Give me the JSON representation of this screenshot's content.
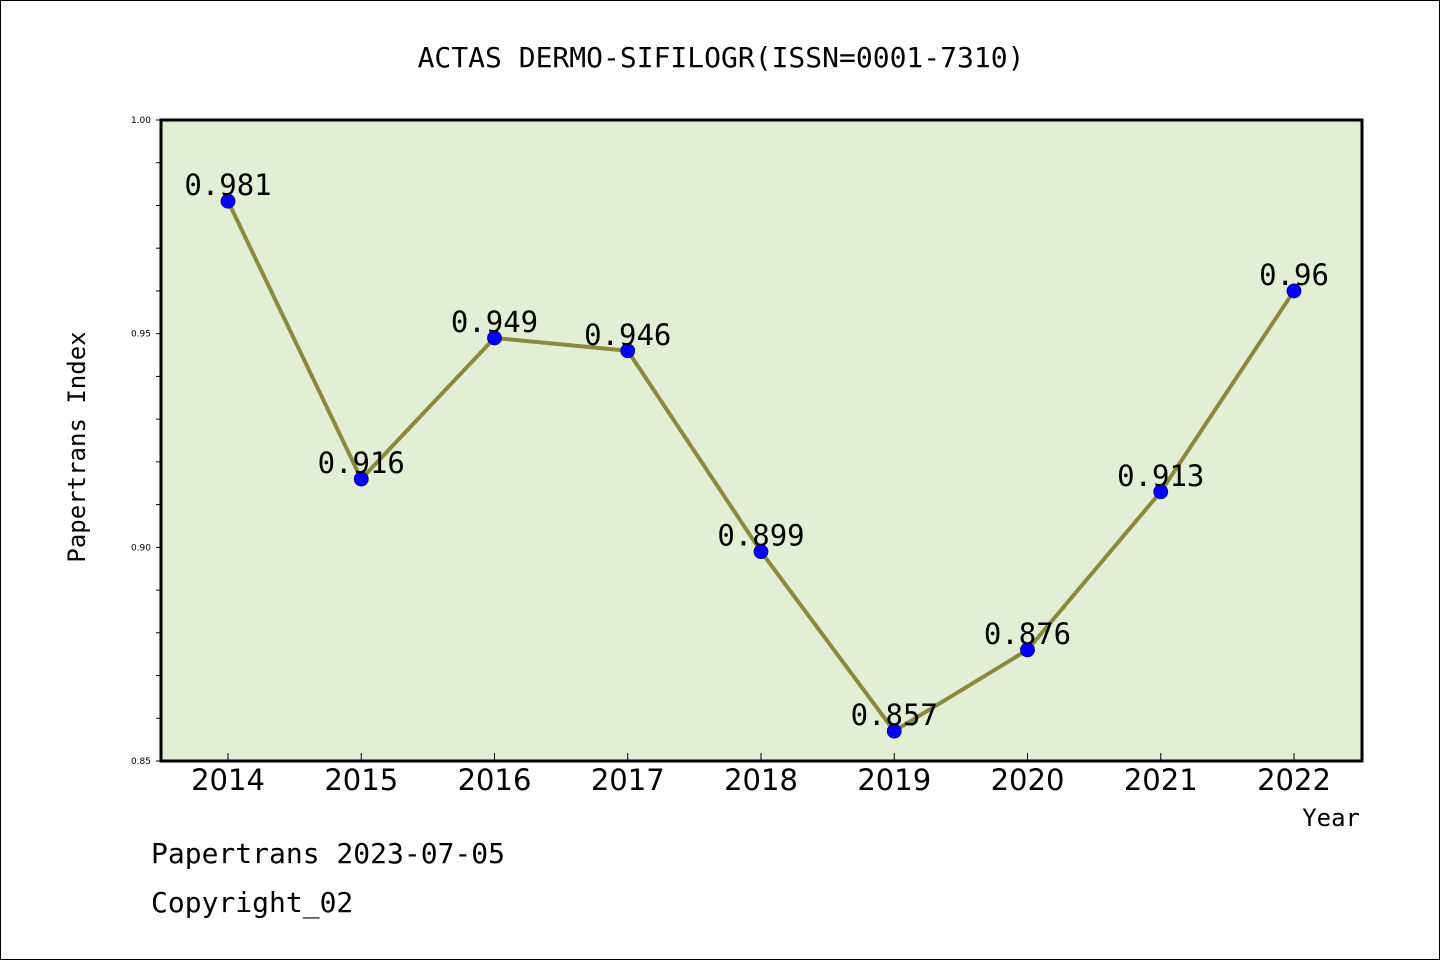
{
  "chart_data": {
    "type": "line",
    "title": "ACTAS DERMO-SIFILOGR(ISSN=0001-7310)",
    "xlabel": "Year",
    "ylabel": "Papertrans Index",
    "categories": [
      "2014",
      "2015",
      "2016",
      "2017",
      "2018",
      "2019",
      "2020",
      "2021",
      "2022"
    ],
    "series": [
      {
        "values": [
          0.981,
          0.916,
          0.949,
          0.946,
          0.899,
          0.857,
          0.876,
          0.913,
          0.96
        ],
        "data_labels": [
          "0.981",
          "0.916",
          "0.949",
          "0.946",
          "0.899",
          "0.857",
          "0.876",
          "0.913",
          "0.96"
        ]
      }
    ],
    "ylim": [
      0.85,
      1.0
    ],
    "yticks": [
      0.85,
      0.9,
      0.95,
      1.0
    ],
    "ytick_labels": [
      "0.85",
      "0.90",
      "0.95",
      "1.00"
    ],
    "grid": false,
    "legend": "none",
    "colors": {
      "plot_background": "#e2efd5",
      "line": "#8b8a3c",
      "marker": "#0000ff"
    }
  },
  "footer": {
    "date_text": "Papertrans 2023-07-05",
    "copyright_text": "Copyright_02"
  }
}
